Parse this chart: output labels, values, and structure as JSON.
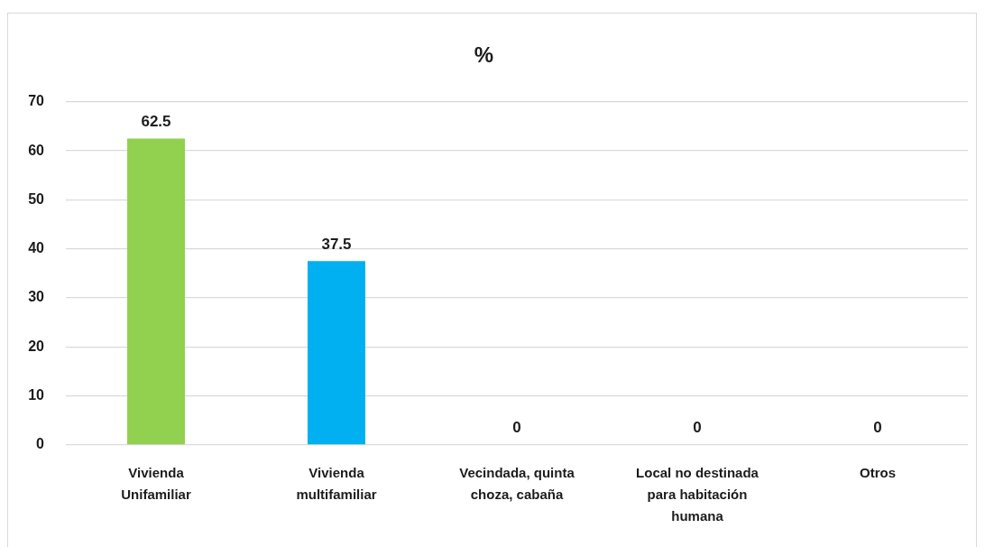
{
  "chart_data": {
    "type": "bar",
    "title": "%",
    "categories": [
      "Vivienda Unifamiliar",
      "Vivienda multifamiliar",
      "Vecindada, quinta choza, cabaña",
      "Local no destinada para habitación humana",
      "Otros"
    ],
    "values": [
      62.5,
      37.5,
      0,
      0,
      0
    ],
    "colors": [
      "#92d050",
      "#00b0f0",
      null,
      null,
      null
    ],
    "ylim": [
      0,
      70
    ],
    "yticks": [
      0,
      10,
      20,
      30,
      40,
      50,
      60,
      70
    ],
    "grid": "y",
    "data_labels": true
  }
}
